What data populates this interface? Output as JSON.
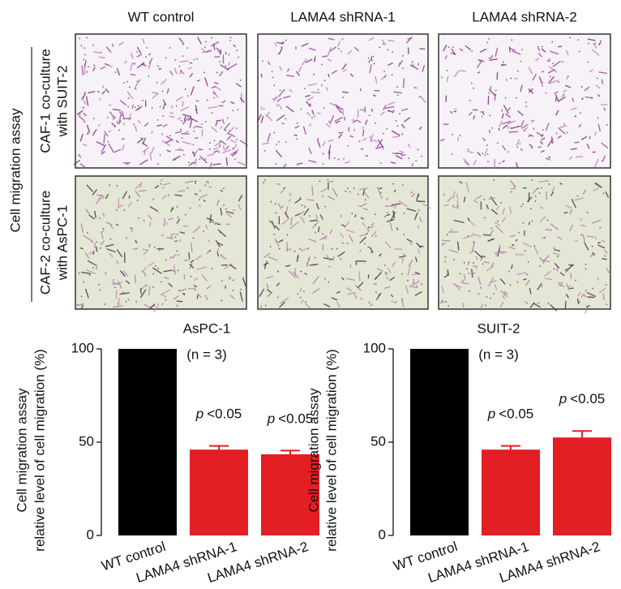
{
  "image_panel": {
    "columns": [
      "WT control",
      "LAMA4 shRNA-1",
      "LAMA4 shRNA-2"
    ],
    "rows": [
      [
        "CAF-1 co-culture",
        "with SUIT-2"
      ],
      [
        "CAF-2 co-culture",
        "with AsPC-1"
      ]
    ],
    "group_label": "Cell migration assay"
  },
  "chart_data": [
    {
      "type": "bar",
      "title": "AsPC-1",
      "subtitle": "(n = 3)",
      "y_label": [
        "Cell migration assay",
        "relative level of cell migration (%)"
      ],
      "categories": [
        "WT control",
        "LAMA4 shRNA-1",
        "LAMA4 shRNA-2"
      ],
      "values": [
        100,
        46,
        43.5
      ],
      "errors": [
        0,
        2,
        2
      ],
      "colors": [
        "#000000",
        "#e31e24",
        "#e31e24"
      ],
      "value_annotations": [
        null,
        {
          "symbol": "p",
          "text": "<0.05"
        },
        {
          "symbol": "p",
          "text": "<0.05"
        }
      ],
      "ylim": [
        0,
        100
      ],
      "yticks": [
        0,
        50,
        100
      ]
    },
    {
      "type": "bar",
      "title": "SUIT-2",
      "subtitle": "(n = 3)",
      "y_label": [
        "Cell migration assay",
        "relative level of cell migration (%)"
      ],
      "categories": [
        "WT control",
        "LAMA4 shRNA-1",
        "LAMA4 shRNA-2"
      ],
      "values": [
        100,
        46,
        52.5
      ],
      "errors": [
        0,
        2,
        3.5
      ],
      "colors": [
        "#000000",
        "#e31e24",
        "#e31e24"
      ],
      "value_annotations": [
        null,
        {
          "symbol": "p",
          "text": "<0.05"
        },
        {
          "symbol": "p",
          "text": "<0.05"
        }
      ],
      "ylim": [
        0,
        100
      ],
      "yticks": [
        0,
        50,
        100
      ]
    }
  ]
}
